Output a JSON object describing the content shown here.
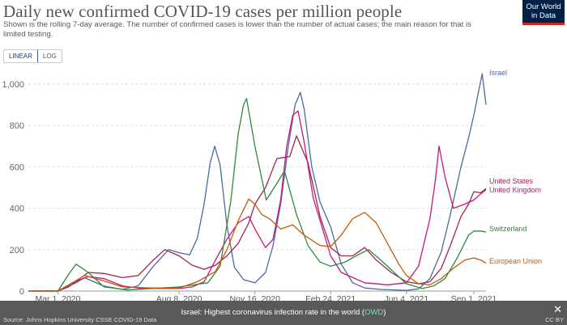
{
  "header": {
    "title": "Daily new confirmed COVID-19 cases per million people",
    "subtitle": "Shown is the rolling 7-day average. The number of confirmed cases is lower than the number of actual cases; the main reason for that is limited testing.",
    "logo_line1": "Our World",
    "logo_line2": "in Data"
  },
  "controls": {
    "linear_label": "LINEAR",
    "log_label": "LOG",
    "selected": "LINEAR"
  },
  "footer": {
    "message_prefix": "Israel: Highest coronavirus infection rate in the world (",
    "message_link": "OWD",
    "message_suffix": ")",
    "close_label": "✕",
    "source": "Source: Johns Hopkins University CSSE COVID-19 Data",
    "license": "CC BY"
  },
  "chart_data": {
    "type": "line",
    "title": "Daily new confirmed COVID-19 cases per million people",
    "x_ticks": [
      "Mar 1, 2020",
      "Aug 8, 2020",
      "Nov 16, 2020",
      "Feb 24, 2021",
      "Jun 4, 2021",
      "Sep 1, 2021"
    ],
    "y_ticks": [
      "0",
      "200",
      "400",
      "600",
      "800",
      "1,000"
    ],
    "ylim": [
      0,
      1050
    ],
    "xlim": [
      "2020-01-22",
      "2021-09-17"
    ],
    "grid": "horizontal dashed",
    "legend": "labels at line ends (right)",
    "series": [
      {
        "name": "Israel",
        "color": "#4c6a9c",
        "x": [
          "2020-01-22",
          "2020-03-01",
          "2020-03-25",
          "2020-04-05",
          "2020-04-30",
          "2020-05-25",
          "2020-06-15",
          "2020-07-05",
          "2020-07-25",
          "2020-08-08",
          "2020-08-22",
          "2020-09-01",
          "2020-09-10",
          "2020-09-18",
          "2020-09-24",
          "2020-10-01",
          "2020-10-10",
          "2020-10-20",
          "2020-11-01",
          "2020-11-16",
          "2020-11-30",
          "2020-12-10",
          "2020-12-20",
          "2020-12-30",
          "2021-01-08",
          "2021-01-15",
          "2021-01-20",
          "2021-01-30",
          "2021-02-10",
          "2021-02-24",
          "2021-03-10",
          "2021-03-25",
          "2021-04-10",
          "2021-05-01",
          "2021-06-04",
          "2021-06-20",
          "2021-07-05",
          "2021-07-20",
          "2021-08-01",
          "2021-08-15",
          "2021-08-25",
          "2021-09-01",
          "2021-09-07",
          "2021-09-12",
          "2021-09-17"
        ],
        "y": [
          0,
          1,
          40,
          65,
          25,
          8,
          25,
          120,
          200,
          185,
          175,
          255,
          420,
          620,
          700,
          610,
          320,
          115,
          55,
          40,
          90,
          220,
          420,
          700,
          900,
          960,
          880,
          600,
          430,
          310,
          130,
          40,
          15,
          8,
          3,
          10,
          60,
          190,
          370,
          600,
          740,
          850,
          960,
          1050,
          900
        ]
      },
      {
        "name": "United States",
        "color": "#a2244a",
        "x": [
          "2020-01-22",
          "2020-03-01",
          "2020-03-15",
          "2020-04-10",
          "2020-05-01",
          "2020-05-25",
          "2020-06-15",
          "2020-07-05",
          "2020-07-20",
          "2020-08-08",
          "2020-08-25",
          "2020-09-10",
          "2020-09-25",
          "2020-10-10",
          "2020-10-25",
          "2020-11-08",
          "2020-11-16",
          "2020-11-30",
          "2020-12-15",
          "2021-01-01",
          "2021-01-10",
          "2021-01-25",
          "2021-02-10",
          "2021-02-24",
          "2021-03-10",
          "2021-03-25",
          "2021-04-10",
          "2021-04-25",
          "2021-05-15",
          "2021-06-04",
          "2021-06-20",
          "2021-07-05",
          "2021-07-20",
          "2021-08-01",
          "2021-08-15",
          "2021-08-25",
          "2021-09-01",
          "2021-09-10",
          "2021-09-17"
        ],
        "y": [
          0,
          0,
          20,
          90,
          85,
          65,
          75,
          150,
          200,
          170,
          125,
          105,
          125,
          170,
          230,
          330,
          420,
          500,
          640,
          650,
          750,
          620,
          360,
          210,
          170,
          170,
          210,
          150,
          90,
          45,
          35,
          45,
          110,
          220,
          360,
          420,
          480,
          475,
          495
        ]
      },
      {
        "name": "United Kingdom",
        "color": "#c9147f",
        "x": [
          "2020-01-22",
          "2020-03-01",
          "2020-03-20",
          "2020-04-10",
          "2020-05-01",
          "2020-05-25",
          "2020-06-20",
          "2020-08-08",
          "2020-08-25",
          "2020-09-10",
          "2020-09-25",
          "2020-10-10",
          "2020-10-25",
          "2020-11-08",
          "2020-11-16",
          "2020-11-30",
          "2020-12-10",
          "2020-12-20",
          "2020-12-28",
          "2021-01-05",
          "2021-01-12",
          "2021-01-20",
          "2021-02-01",
          "2021-02-24",
          "2021-03-10",
          "2021-04-10",
          "2021-05-10",
          "2021-06-04",
          "2021-06-20",
          "2021-07-05",
          "2021-07-12",
          "2021-07-17",
          "2021-07-25",
          "2021-08-05",
          "2021-08-20",
          "2021-09-01",
          "2021-09-10",
          "2021-09-17"
        ],
        "y": [
          0,
          0,
          40,
          70,
          60,
          25,
          12,
          12,
          20,
          45,
          150,
          250,
          330,
          360,
          300,
          210,
          250,
          440,
          700,
          850,
          870,
          720,
          450,
          170,
          90,
          40,
          30,
          40,
          120,
          350,
          530,
          700,
          550,
          400,
          420,
          440,
          470,
          490
        ]
      },
      {
        "name": "Switzerland",
        "color": "#2b8a3e",
        "x": [
          "2020-01-22",
          "2020-03-01",
          "2020-03-15",
          "2020-03-25",
          "2020-04-10",
          "2020-05-01",
          "2020-06-01",
          "2020-08-08",
          "2020-09-15",
          "2020-10-01",
          "2020-10-15",
          "2020-10-25",
          "2020-11-01",
          "2020-11-05",
          "2020-11-16",
          "2020-12-01",
          "2020-12-15",
          "2020-12-25",
          "2021-01-10",
          "2021-01-25",
          "2021-02-10",
          "2021-02-24",
          "2021-03-15",
          "2021-04-01",
          "2021-04-15",
          "2021-05-01",
          "2021-06-04",
          "2021-06-25",
          "2021-07-10",
          "2021-07-25",
          "2021-08-10",
          "2021-08-25",
          "2021-09-01",
          "2021-09-10",
          "2021-09-17"
        ],
        "y": [
          0,
          0,
          80,
          130,
          90,
          20,
          5,
          20,
          40,
          120,
          430,
          760,
          900,
          930,
          700,
          440,
          520,
          580,
          370,
          220,
          140,
          120,
          140,
          175,
          200,
          150,
          35,
          12,
          25,
          60,
          160,
          270,
          290,
          290,
          285
        ]
      },
      {
        "name": "European Union",
        "color": "#c15b0b",
        "x": [
          "2020-01-22",
          "2020-03-01",
          "2020-03-20",
          "2020-04-05",
          "2020-04-30",
          "2020-05-25",
          "2020-07-01",
          "2020-08-08",
          "2020-09-01",
          "2020-09-25",
          "2020-10-10",
          "2020-10-25",
          "2020-11-08",
          "2020-11-16",
          "2020-11-25",
          "2020-12-05",
          "2020-12-20",
          "2021-01-05",
          "2021-01-20",
          "2021-02-10",
          "2021-02-24",
          "2021-03-10",
          "2021-03-25",
          "2021-04-10",
          "2021-04-25",
          "2021-05-10",
          "2021-05-25",
          "2021-06-04",
          "2021-06-20",
          "2021-07-05",
          "2021-07-20",
          "2021-08-05",
          "2021-08-20",
          "2021-09-01",
          "2021-09-10",
          "2021-09-17"
        ],
        "y": [
          0,
          0,
          40,
          75,
          50,
          20,
          15,
          15,
          45,
          95,
          200,
          340,
          445,
          420,
          370,
          350,
          300,
          320,
          270,
          220,
          215,
          270,
          350,
          380,
          330,
          230,
          130,
          75,
          35,
          30,
          60,
          110,
          150,
          160,
          150,
          135
        ]
      }
    ]
  }
}
